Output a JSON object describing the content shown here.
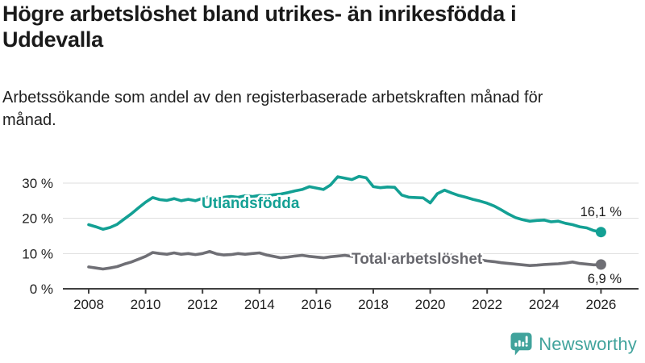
{
  "header": {
    "title": "Högre arbetslöshet bland utrikes- än inrikesfödda i Uddevalla",
    "subtitle": "Arbetssökande som andel av den registerbaserade arbetskraften månad för månad."
  },
  "chart_data": {
    "type": "line",
    "x_unit": "year",
    "y_unit": "percent",
    "x_start": 2008,
    "x_step": 0.25,
    "x_end": 2026,
    "ylim": [
      0,
      33
    ],
    "grid": "horizontal",
    "legend": "inline-labels",
    "y_ticks": [
      {
        "value": 0,
        "label": "0 %"
      },
      {
        "value": 10,
        "label": "10 %"
      },
      {
        "value": 20,
        "label": "20 %"
      },
      {
        "value": 30,
        "label": "30 %"
      }
    ],
    "x_ticks": [
      {
        "value": 2008,
        "label": "2008"
      },
      {
        "value": 2010,
        "label": "2010"
      },
      {
        "value": 2012,
        "label": "2012"
      },
      {
        "value": 2014,
        "label": "2014"
      },
      {
        "value": 2016,
        "label": "2016"
      },
      {
        "value": 2018,
        "label": "2018"
      },
      {
        "value": 2020,
        "label": "2020"
      },
      {
        "value": 2022,
        "label": "2022"
      },
      {
        "value": 2024,
        "label": "2024"
      },
      {
        "value": 2026,
        "label": "2026"
      }
    ],
    "series": [
      {
        "name": "Utlandsfödda",
        "color": "#13a094",
        "end_label": "16,1 %",
        "end_value": 16.1,
        "values": [
          18.2,
          17.6,
          16.9,
          17.4,
          18.3,
          19.8,
          21.3,
          23.0,
          24.6,
          25.9,
          25.3,
          25.1,
          25.6,
          25.0,
          25.4,
          25.0,
          25.7,
          26.1,
          25.8,
          26.0,
          26.2,
          26.0,
          26.4,
          26.2,
          26.5,
          26.3,
          26.7,
          26.9,
          27.3,
          27.8,
          28.2,
          29.0,
          28.6,
          28.2,
          29.5,
          31.8,
          31.4,
          31.0,
          31.9,
          31.5,
          29.0,
          28.7,
          28.9,
          28.8,
          26.6,
          26.0,
          25.9,
          25.8,
          24.4,
          27.0,
          28.0,
          27.2,
          26.5,
          26.0,
          25.4,
          24.9,
          24.3,
          23.5,
          22.4,
          21.2,
          20.2,
          19.6,
          19.2,
          19.4,
          19.5,
          19.0,
          19.2,
          18.6,
          18.2,
          17.6,
          17.3,
          16.5,
          16.1
        ]
      },
      {
        "name": "Total arbetslöshet",
        "color": "#6f6f75",
        "end_label": "6,9 %",
        "end_value": 6.9,
        "values": [
          6.2,
          5.9,
          5.6,
          5.9,
          6.3,
          7.0,
          7.6,
          8.4,
          9.2,
          10.3,
          10.0,
          9.8,
          10.2,
          9.8,
          10.0,
          9.7,
          10.0,
          10.6,
          9.9,
          9.6,
          9.7,
          10.0,
          9.8,
          10.0,
          10.2,
          9.6,
          9.2,
          8.8,
          9.0,
          9.3,
          9.5,
          9.2,
          9.0,
          8.8,
          9.1,
          9.3,
          9.5,
          9.2,
          9.0,
          8.8,
          8.6,
          8.5,
          8.7,
          8.5,
          8.3,
          8.4,
          8.3,
          8.5,
          8.7,
          9.6,
          9.9,
          9.5,
          9.2,
          8.9,
          8.5,
          8.2,
          7.9,
          7.7,
          7.4,
          7.2,
          7.0,
          6.8,
          6.6,
          6.7,
          6.9,
          7.0,
          7.1,
          7.3,
          7.6,
          7.2,
          7.0,
          6.8,
          6.9
        ]
      }
    ]
  },
  "footer": {
    "brand": "Newsworthy"
  },
  "colors": {
    "teal": "#13a094",
    "gray": "#6f6f75",
    "gray_label": "#67676d",
    "axis": "#404040",
    "grid": "#dddddd",
    "logo_teal": "#41a39c"
  }
}
